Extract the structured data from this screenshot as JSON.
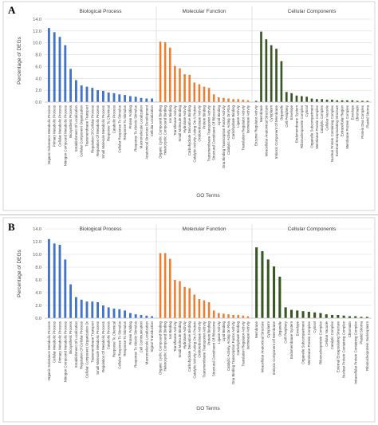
{
  "panels": [
    {
      "letter": "A",
      "chart_data": {
        "type": "bar",
        "ylabel": "Percentage of DEGs",
        "xlabel": "GO Terms",
        "ylim": [
          0,
          14
        ],
        "yticks": [
          "0.0",
          "2.0",
          "4.0",
          "6.0",
          "8.0",
          "10.0",
          "12.0",
          "14.0"
        ],
        "grid": true,
        "series": [
          {
            "name": "Biological Process",
            "color": "#4472c4",
            "categories": [
              "Organic Substance Metabolic Process",
              "Primary Metabolic Process",
              "Cellular Metabolic Process",
              "Nitrogen Compound Metabolic Process",
              "Biosynthetic Process",
              "Establishment Of Localization",
              "Cellular Component Organization",
              "Transmembrane Transport",
              "Regulation Of Cellular Process",
              "Regulation Of Metabolic Process",
              "Small Molecule Metabolic Process",
              "Response To Chemical",
              "Catabolic Process",
              "Cellular Response To Stimulus",
              "Response To Stimulus",
              "Protein Folding",
              "Response To Abiotic Stimulus",
              "Macromolecule Localization",
              "Anatomical Structure Development",
              "Cellular Localization"
            ],
            "values": [
              12.5,
              11.8,
              11.0,
              9.6,
              5.6,
              3.7,
              2.8,
              2.6,
              2.4,
              2.0,
              1.9,
              1.6,
              1.5,
              1.3,
              1.2,
              1.0,
              0.9,
              0.7,
              0.6,
              0.6
            ]
          },
          {
            "name": "Molecular Function",
            "color": "#ed7d31",
            "categories": [
              "Organic Cyclic Compound Binding",
              "Heterocyclic Compound Binding",
              "Ion Binding",
              "Transferase Activity",
              "Small Molecule Binding",
              "Hydrolase Activity",
              "Carbohydrate Derivative Binding",
              "Catalytic Activity, Acting On A Protein",
              "Oxidoreductase Activity",
              "Protein Binding",
              "Transmembrane Transporter Activity",
              "Structural Constituent Of Ribosome",
              "Lipid Binding",
              "Dna Binding Transcription Factor Activity",
              "Catalytic Activity, Acting On Rna",
              "Carbohydrate Binding",
              "Ligase Activity",
              "Translation Regulator Activity",
              "Isomerase Activity"
            ],
            "values": [
              10.2,
              10.1,
              9.2,
              6.1,
              5.7,
              4.7,
              4.6,
              3.3,
              3.0,
              2.6,
              2.4,
              1.3,
              0.8,
              0.7,
              0.6,
              0.5,
              0.5,
              0.4,
              0.3
            ]
          },
          {
            "name": "Cellular Components",
            "color": "#385723",
            "categories": [
              "Enzyme Regulator Activity",
              "Membrane",
              "Intracellular Anatomical Structure",
              "Cytoplasm",
              "Intrinsic Component Of Membrane",
              "Organelle",
              "Cell Periphery",
              "Envelope",
              "Endomembrane System",
              "Ribonucleoprotein Complex",
              "Cytosol",
              "Organelle Subcompartment",
              "Membrane Protein Complex",
              "Catalytic Complex",
              "Cellular Vacuole",
              "Nuclear Protein Containing Complex",
              "External Encapsulating Structure",
              "Extracellular Region",
              "Membrane Protein Complex",
              "Envelope",
              "Chromatin",
              "Protein Dna Complex",
              "Plastid Stroma"
            ],
            "values": [
              0.2,
              11.9,
              10.6,
              9.6,
              9.0,
              6.9,
              1.7,
              1.5,
              1.1,
              1.0,
              0.9,
              0.6,
              0.5,
              0.5,
              0.4,
              0.4,
              0.3,
              0.3,
              0.3,
              0.3,
              0.2,
              0.2,
              0.2
            ]
          }
        ]
      }
    },
    {
      "letter": "B",
      "chart_data": {
        "type": "bar",
        "ylabel": "Percentage of DEGs",
        "xlabel": "GO Terms",
        "ylim": [
          0,
          14
        ],
        "yticks": [
          "0.0",
          "2.0",
          "4.0",
          "6.0",
          "8.0",
          "10.0",
          "12.0",
          "14.0"
        ],
        "grid": true,
        "series": [
          {
            "name": "Biological Process",
            "color": "#4472c4",
            "categories": [
              "Organic Substance Metabolic Process",
              "Cellular Metabolic Process",
              "Primary Metabolic Process",
              "Nitrogen Compound Metabolic Process",
              "Biosynthetic Process",
              "Establishment Of Localization",
              "Regulation Of Cellular Process",
              "Cellular Component Organization Or",
              "Transmembrane Transport",
              "Small Molecule Metabolic Process",
              "Regulation Of Metabolic Process",
              "Catabolic Process",
              "Response To Chemical",
              "Cellular Response To Stimulus",
              "Response To Stimulus",
              "Protein Folding",
              "Response To Abiotic Stimulus",
              "Cell Communication",
              "Macromolecule Localization",
              "Signal Transduction"
            ],
            "values": [
              12.4,
              11.7,
              11.5,
              9.2,
              5.3,
              3.3,
              2.9,
              2.6,
              2.6,
              2.5,
              2.0,
              1.7,
              1.5,
              1.4,
              1.2,
              0.8,
              0.6,
              0.5,
              0.4,
              0.3
            ]
          },
          {
            "name": "Molecular Function",
            "color": "#ed7d31",
            "categories": [
              "Organic Cyclic Compound Binding",
              "Heterocyclic Compound Binding",
              "Ion Binding",
              "Transferase Activity",
              "Small Molecule Binding",
              "Hydrolase Activity",
              "Carbohydrate Derivative Binding",
              "Catalytic Activity, Acting On A Protein",
              "Oxidoreductase Activity",
              "Transmembrane Transporter Activity",
              "Protein Binding",
              "Structural Constituent Of Ribosome",
              "Ligase Activity",
              "Lipid Binding",
              "Catalytic Activity, Acting On Rna",
              "Dna Binding Transcription Factor Activity",
              "Carbohydrate Binding",
              "Translation Regulator Activity",
              "Isomerase Activity"
            ],
            "values": [
              10.2,
              10.2,
              9.3,
              6.0,
              5.8,
              4.9,
              4.7,
              3.7,
              3.0,
              2.8,
              2.5,
              1.2,
              0.8,
              0.7,
              0.6,
              0.5,
              0.5,
              0.4,
              0.3
            ]
          },
          {
            "name": "Cellular Components",
            "color": "#385723",
            "categories": [
              "Membrane",
              "Intracellular Anatomical Structure",
              "Cytoplasm",
              "Intrinsic Component Of Membrane",
              "Organelle",
              "Cell Periphery",
              "Endomembrane System",
              "Envelope",
              "Organelle Subcompartment",
              "Membrane Protein Complex",
              "Cytosol",
              "Ribonucleoprotein Complex",
              "Cellular Vacuole",
              "Catalytic Complex",
              "External Encapsulating Structure",
              "Nuclear Protein Containing Complex",
              "Chromatin",
              "Intracellular Protein Containing Complex",
              "Plastid Stroma",
              "Ribonucleoprotein Nucleoplasm"
            ],
            "values": [
              11.1,
              10.5,
              9.2,
              8.1,
              6.5,
              1.7,
              1.3,
              1.2,
              1.1,
              1.0,
              0.9,
              0.8,
              0.6,
              0.5,
              0.5,
              0.4,
              0.3,
              0.3,
              0.2,
              0.2
            ]
          }
        ]
      }
    }
  ]
}
